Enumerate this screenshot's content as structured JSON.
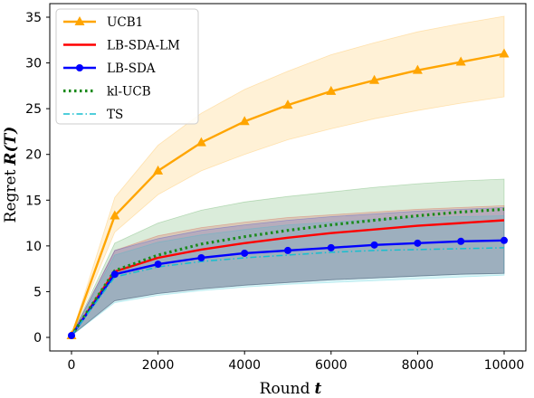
{
  "chart_data": {
    "type": "line",
    "xlabel_prefix": "Round",
    "xlabel_var": "t",
    "ylabel_prefix": "Regret",
    "ylabel_var": "R(T)",
    "xlim": [
      0,
      10000
    ],
    "ylim": [
      0,
      35
    ],
    "xticks": [
      0,
      2000,
      4000,
      6000,
      8000,
      10000
    ],
    "yticks": [
      0,
      5,
      10,
      15,
      20,
      25,
      30,
      35
    ],
    "grid": false,
    "legend_position": "top-left",
    "x": [
      0,
      1000,
      2000,
      3000,
      4000,
      5000,
      6000,
      7000,
      8000,
      9000,
      10000
    ],
    "series": [
      {
        "name": "UCB1",
        "color": "#FFA500",
        "style": "solid",
        "marker": "triangle",
        "values": [
          0.2,
          13.3,
          18.2,
          21.3,
          23.6,
          25.4,
          26.9,
          28.1,
          29.2,
          30.1,
          31.0
        ],
        "band_low": [
          0.2,
          11.5,
          15.6,
          18.2,
          20.0,
          21.6,
          22.8,
          23.9,
          24.8,
          25.6,
          26.3
        ],
        "band_high": [
          0.2,
          15.3,
          21.0,
          24.5,
          27.1,
          29.1,
          30.9,
          32.2,
          33.4,
          34.3,
          35.1
        ]
      },
      {
        "name": "LB-SDA-LM",
        "color": "#FF0000",
        "style": "solid",
        "marker": "none",
        "values": [
          0.2,
          7.2,
          8.7,
          9.6,
          10.3,
          10.9,
          11.4,
          11.8,
          12.2,
          12.5,
          12.8
        ],
        "band_low": [
          0.2,
          4.0,
          4.8,
          5.3,
          5.7,
          6.0,
          6.3,
          6.5,
          6.7,
          6.9,
          7.0
        ],
        "band_high": [
          0.2,
          9.5,
          11.1,
          12.0,
          12.6,
          13.1,
          13.4,
          13.7,
          14.0,
          14.2,
          14.4
        ]
      },
      {
        "name": "LB-SDA",
        "color": "#0000FF",
        "style": "solid",
        "marker": "circle",
        "values": [
          0.2,
          6.9,
          8.0,
          8.7,
          9.2,
          9.5,
          9.8,
          10.1,
          10.3,
          10.5,
          10.6
        ],
        "band_low": [
          0.2,
          4.0,
          4.8,
          5.3,
          5.7,
          6.0,
          6.3,
          6.5,
          6.7,
          6.9,
          7.0
        ],
        "band_high": [
          0.2,
          9.5,
          10.8,
          11.7,
          12.3,
          12.8,
          13.2,
          13.5,
          13.8,
          14.0,
          14.2
        ]
      },
      {
        "name": "kl-UCB",
        "color": "#1A8A1A",
        "style": "dotted",
        "marker": "none",
        "values": [
          0.2,
          7.3,
          9.0,
          10.2,
          11.0,
          11.7,
          12.3,
          12.8,
          13.3,
          13.7,
          14.0
        ],
        "band_low": [
          0.2,
          4.0,
          4.8,
          5.3,
          5.7,
          6.0,
          6.3,
          6.5,
          6.7,
          6.9,
          7.0
        ],
        "band_high": [
          0.2,
          10.3,
          12.5,
          13.9,
          14.8,
          15.4,
          15.9,
          16.4,
          16.8,
          17.1,
          17.3
        ]
      },
      {
        "name": "TS",
        "color": "#17BECF",
        "style": "dashdot",
        "marker": "none",
        "values": [
          0.2,
          6.6,
          7.7,
          8.3,
          8.7,
          9.0,
          9.3,
          9.5,
          9.6,
          9.7,
          9.8
        ],
        "band_low": [
          0.2,
          3.8,
          4.6,
          5.1,
          5.5,
          5.8,
          6.0,
          6.2,
          6.4,
          6.6,
          6.8
        ],
        "band_high": [
          0.2,
          9.0,
          10.4,
          11.2,
          11.8,
          12.3,
          12.6,
          12.9,
          13.1,
          13.2,
          13.3
        ]
      }
    ]
  }
}
